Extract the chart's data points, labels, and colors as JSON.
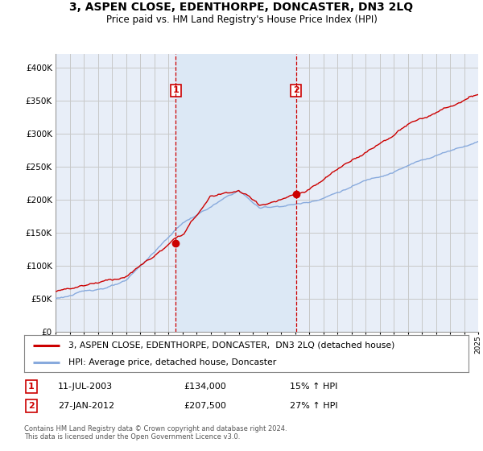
{
  "title": "3, ASPEN CLOSE, EDENTHORPE, DONCASTER, DN3 2LQ",
  "subtitle": "Price paid vs. HM Land Registry's House Price Index (HPI)",
  "ylim": [
    0,
    420000
  ],
  "xlim_start": 1995.0,
  "xlim_end": 2025.0,
  "sale1_date": 2003.53,
  "sale1_price": 134000,
  "sale1_label": "1",
  "sale1_text": "11-JUL-2003",
  "sale1_amount": "£134,000",
  "sale1_hpi": "15% ↑ HPI",
  "sale2_date": 2012.07,
  "sale2_price": 207500,
  "sale2_label": "2",
  "sale2_text": "27-JAN-2012",
  "sale2_amount": "£207,500",
  "sale2_hpi": "27% ↑ HPI",
  "property_color": "#cc0000",
  "hpi_color": "#88aadd",
  "shade_color": "#dce8f5",
  "background_color": "#e8eef8",
  "grid_color": "#c8c8c8",
  "legend_property": "3, ASPEN CLOSE, EDENTHORPE, DONCASTER,  DN3 2LQ (detached house)",
  "legend_hpi": "HPI: Average price, detached house, Doncaster",
  "footnote": "Contains HM Land Registry data © Crown copyright and database right 2024.\nThis data is licensed under the Open Government Licence v3.0."
}
